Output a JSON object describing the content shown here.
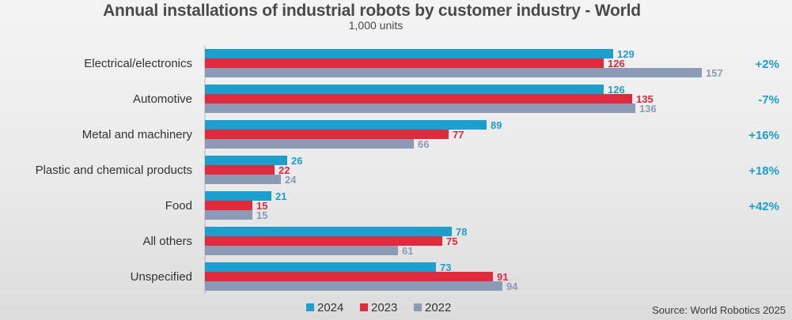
{
  "chart_data": {
    "type": "bar",
    "orientation": "horizontal",
    "title": "Annual installations of industrial robots by customer industry - World",
    "subtitle": "1,000 units",
    "categories": [
      "Electrical/electronics",
      "Automotive",
      "Metal and machinery",
      "Plastic and chemical products",
      "Food",
      "All others",
      "Unspecified"
    ],
    "series": [
      {
        "name": "2024",
        "color": "#1a9fcf",
        "values": [
          129,
          126,
          89,
          26,
          21,
          78,
          73
        ]
      },
      {
        "name": "2023",
        "color": "#e12a3c",
        "values": [
          126,
          135,
          77,
          22,
          15,
          75,
          91
        ]
      },
      {
        "name": "2022",
        "color": "#8b9ab5",
        "values": [
          157,
          136,
          66,
          24,
          15,
          61,
          94
        ]
      }
    ],
    "changes": [
      "+2%",
      "-7%",
      "+16%",
      "+18%",
      "+42%",
      "",
      ""
    ],
    "change_color": "#1a9fcf",
    "xlim": [
      0,
      170
    ],
    "grid": false,
    "legend": "bottom-center",
    "source": "Source: World Robotics 2025"
  }
}
